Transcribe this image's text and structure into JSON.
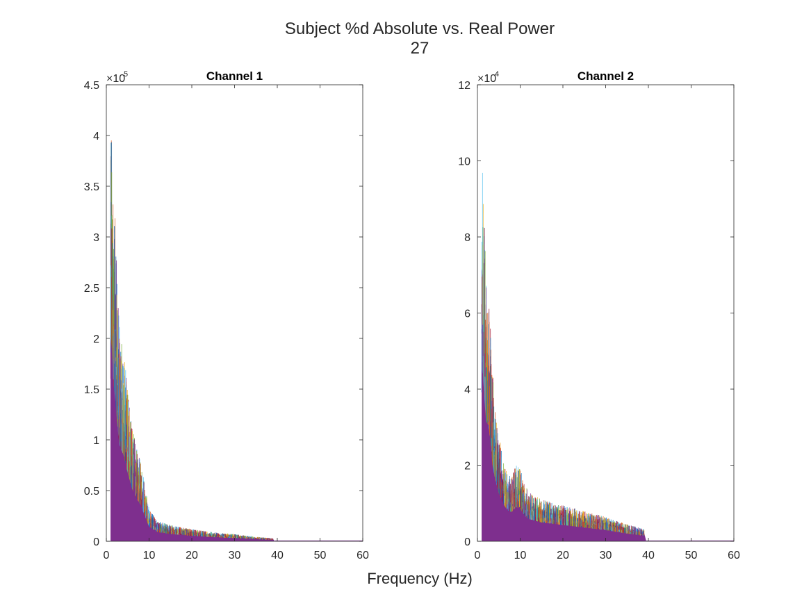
{
  "figure": {
    "title_line1": "Subject %d Absolute vs. Real Power",
    "title_line2": "27",
    "xlabel": "Frequency (Hz)"
  },
  "colors": {
    "fill": "#7E2F8E",
    "traces": [
      "#0072BD",
      "#D95319",
      "#EDB120",
      "#7E2F8E",
      "#77AC30",
      "#4DBEEE",
      "#A2142F"
    ],
    "axis": "#262626"
  },
  "chart_data": [
    {
      "type": "line",
      "title": "Channel 1",
      "xlabel": "",
      "ylabel": "",
      "xlim": [
        0,
        60
      ],
      "ylim": [
        0,
        450000
      ],
      "xticks": [
        "0",
        "10",
        "20",
        "30",
        "40",
        "50",
        "60"
      ],
      "yticks": [
        "0",
        "0.5",
        "1",
        "1.5",
        "2",
        "2.5",
        "3",
        "3.5",
        "4",
        "4.5"
      ],
      "exponent_base": "×10",
      "exponent_power": "5",
      "grid": false,
      "note_series": "many overlapping multi-colored traces",
      "envelope": {
        "x": [
          1,
          1.3,
          1.6,
          2,
          2.5,
          3,
          3.5,
          4,
          5,
          6,
          7,
          8,
          9,
          10,
          12,
          15,
          20,
          25,
          30,
          35,
          39,
          39.5,
          60
        ],
        "y": [
          445000,
          420000,
          350000,
          320000,
          260000,
          215000,
          200000,
          190000,
          150000,
          115000,
          95000,
          80000,
          55000,
          32000,
          20000,
          16000,
          12000,
          9000,
          7000,
          4500,
          3000,
          0,
          0
        ]
      }
    },
    {
      "type": "line",
      "title": "Channel 2",
      "xlabel": "",
      "ylabel": "",
      "xlim": [
        0,
        60
      ],
      "ylim": [
        0,
        120000
      ],
      "xticks": [
        "0",
        "10",
        "20",
        "30",
        "40",
        "50",
        "60"
      ],
      "yticks": [
        "0",
        "2",
        "4",
        "6",
        "8",
        "10",
        "12"
      ],
      "exponent_base": "×10",
      "exponent_power": "4",
      "grid": false,
      "note_series": "many overlapping multi-colored traces",
      "envelope": {
        "x": [
          1,
          1.3,
          1.6,
          2,
          2.5,
          3,
          3.5,
          4,
          5,
          6,
          7,
          8,
          9,
          10,
          11,
          12,
          15,
          20,
          25,
          30,
          35,
          39,
          39.5,
          60
        ],
        "y": [
          100000,
          97000,
          84000,
          70000,
          68000,
          60000,
          45000,
          38000,
          28000,
          22000,
          18000,
          17000,
          20000,
          19000,
          15000,
          13000,
          11000,
          9500,
          8000,
          6500,
          4500,
          3200,
          0,
          0
        ]
      }
    }
  ]
}
